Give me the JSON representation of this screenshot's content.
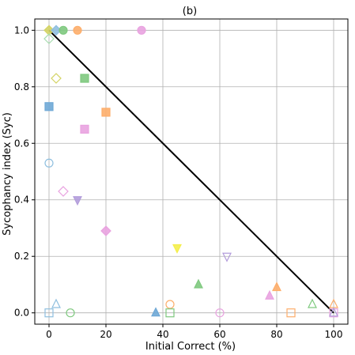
{
  "chart_data": {
    "type": "scatter",
    "title": "(b)",
    "xlabel": "Initial Correct (%)",
    "ylabel": "Sycophancy index (Syc)",
    "xlim": [
      -5,
      105
    ],
    "ylim": [
      -0.04,
      1.04
    ],
    "x_ticks": [
      0,
      20,
      40,
      60,
      80,
      100
    ],
    "y_ticks": [
      0.0,
      0.2,
      0.4,
      0.6,
      0.8,
      1.0
    ],
    "x_tick_labels": [
      "0",
      "20",
      "40",
      "60",
      "80",
      "100"
    ],
    "y_tick_labels": [
      "0.0",
      "0.2",
      "0.4",
      "0.6",
      "0.8",
      "1.0"
    ],
    "grid": true,
    "reference_line": {
      "x": [
        0,
        100
      ],
      "y": [
        1.0,
        0.0
      ],
      "color": "#000000"
    },
    "points": [
      {
        "x": 0,
        "y": 1.0,
        "marker": "diamond",
        "filled": true,
        "color": "#d4d465"
      },
      {
        "x": 0,
        "y": 0.97,
        "marker": "diamond",
        "filled": false,
        "color": "#a8dcb0"
      },
      {
        "x": 2.5,
        "y": 1.0,
        "marker": "diamond",
        "filled": true,
        "color": "#8fbfdf"
      },
      {
        "x": 5,
        "y": 1.0,
        "marker": "circle",
        "filled": true,
        "color": "#7fc97f"
      },
      {
        "x": 10,
        "y": 1.0,
        "marker": "circle",
        "filled": true,
        "color": "#fdae6b"
      },
      {
        "x": 32.5,
        "y": 1.0,
        "marker": "circle",
        "filled": true,
        "color": "#e9a3e0"
      },
      {
        "x": 2.5,
        "y": 0.83,
        "marker": "diamond",
        "filled": false,
        "color": "#d4d465"
      },
      {
        "x": 12.5,
        "y": 0.83,
        "marker": "square",
        "filled": true,
        "color": "#7fc97f"
      },
      {
        "x": 0,
        "y": 0.73,
        "marker": "square",
        "filled": true,
        "color": "#6fa8d6"
      },
      {
        "x": 20,
        "y": 0.71,
        "marker": "square",
        "filled": true,
        "color": "#fdae6b"
      },
      {
        "x": 12.5,
        "y": 0.65,
        "marker": "square",
        "filled": true,
        "color": "#e9a3e0"
      },
      {
        "x": 0,
        "y": 0.53,
        "marker": "circle",
        "filled": false,
        "color": "#8fbfdf"
      },
      {
        "x": 5,
        "y": 0.43,
        "marker": "diamond",
        "filled": false,
        "color": "#e9a3e0"
      },
      {
        "x": 10,
        "y": 0.4,
        "marker": "triangle_down",
        "filled": true,
        "color": "#b39ddb"
      },
      {
        "x": 20,
        "y": 0.29,
        "marker": "diamond",
        "filled": true,
        "color": "#e9a3e0"
      },
      {
        "x": 45,
        "y": 0.23,
        "marker": "triangle_down",
        "filled": true,
        "color": "#f4ee4b"
      },
      {
        "x": 62.5,
        "y": 0.2,
        "marker": "triangle_down",
        "filled": false,
        "color": "#b39ddb"
      },
      {
        "x": 52.5,
        "y": 0.1,
        "marker": "triangle_up",
        "filled": true,
        "color": "#7fc97f"
      },
      {
        "x": 80,
        "y": 0.09,
        "marker": "triangle_up",
        "filled": true,
        "color": "#fdae6b"
      },
      {
        "x": 77.5,
        "y": 0.06,
        "marker": "triangle_up",
        "filled": true,
        "color": "#e9a3e0"
      },
      {
        "x": 92.5,
        "y": 0.03,
        "marker": "triangle_up",
        "filled": false,
        "color": "#7fc97f"
      },
      {
        "x": 100,
        "y": 0.03,
        "marker": "triangle_up",
        "filled": false,
        "color": "#fdae6b"
      },
      {
        "x": 2.5,
        "y": 0.03,
        "marker": "triangle_up",
        "filled": false,
        "color": "#8fbfdf"
      },
      {
        "x": 42.5,
        "y": 0.03,
        "marker": "circle",
        "filled": false,
        "color": "#fdae6b"
      },
      {
        "x": 0,
        "y": 0.0,
        "marker": "square",
        "filled": false,
        "color": "#8fbfdf"
      },
      {
        "x": 7.5,
        "y": 0.0,
        "marker": "circle",
        "filled": false,
        "color": "#7fc97f"
      },
      {
        "x": 37.5,
        "y": 0.0,
        "marker": "triangle_up",
        "filled": true,
        "color": "#6fa8d6"
      },
      {
        "x": 42.5,
        "y": 0.0,
        "marker": "square",
        "filled": false,
        "color": "#7fc97f"
      },
      {
        "x": 60,
        "y": 0.0,
        "marker": "circle",
        "filled": false,
        "color": "#e9a3e0"
      },
      {
        "x": 85,
        "y": 0.0,
        "marker": "square",
        "filled": false,
        "color": "#fdae6b"
      },
      {
        "x": 100,
        "y": 0.0,
        "marker": "square",
        "filled": false,
        "color": "#e9a3e0"
      },
      {
        "x": 100,
        "y": 0.0,
        "marker": "triangle_up",
        "filled": false,
        "color": "#b39ddb"
      }
    ]
  }
}
